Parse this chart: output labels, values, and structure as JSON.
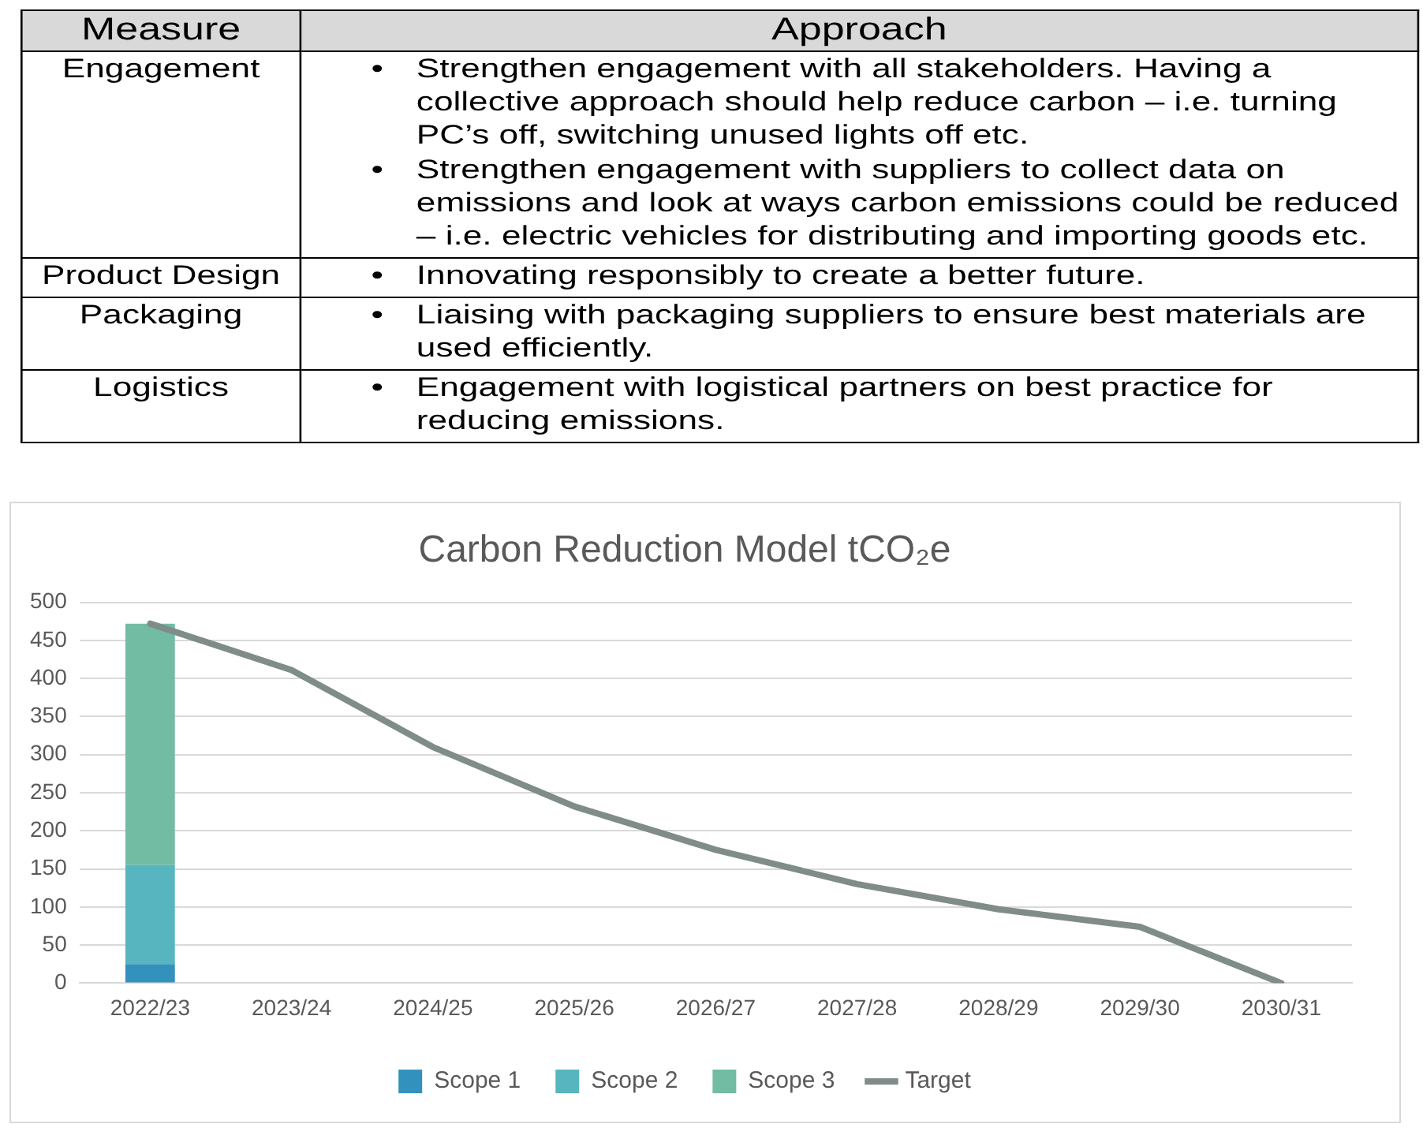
{
  "chart_data": [
    {
      "type": "other",
      "annotations": [
        "Measure",
        "Approach",
        "Engagement",
        "•\tStrengthen engagement with all stakeholders. Having a collective approach should help reduce carbon – i.e. turning PC’s off, switching unused lights off etc.\n•\tStrengthen engagement with suppliers to collect data on emissions and look at ways carbon emissions could be reduced – i.e. electric vehicles for distributing and importing goods etc.",
        "Product Design",
        "•\tInnovating responsibly to create a better future.",
        "Packaging",
        "•\tLiaising with packaging suppliers to ensure best materials are used efficiently.",
        "Logistics",
        "•\tEngagement with logistical partners on best practice for reducing emissions."
      ]
    },
    {
      "type": "bar",
      "title": "Carbon Reduction Model tCO₂e",
      "stacked": true,
      "grid": "y",
      "legend": "bottom",
      "categories": [
        "2022/23",
        "2023/24",
        "2024/25",
        "2025/26",
        "2026/27",
        "2027/28",
        "2028/29",
        "2029/30",
        "2030/31"
      ],
      "ylim": [
        0,
        500
      ],
      "yticks": [
        0,
        50,
        100,
        150,
        200,
        250,
        300,
        350,
        400,
        450,
        500
      ],
      "series": [
        {
          "name": "Scope 1",
          "color": "#3291bd",
          "values": [
            25,
            null,
            null,
            null,
            null,
            null,
            null,
            null,
            null
          ]
        },
        {
          "name": "Scope 2",
          "color": "#57b5c0",
          "values": [
            130,
            null,
            null,
            null,
            null,
            null,
            null,
            null,
            null
          ]
        },
        {
          "name": "Scope 3",
          "color": "#72bca4",
          "values": [
            317,
            null,
            null,
            null,
            null,
            null,
            null,
            null,
            null
          ]
        },
        {
          "name": "Target",
          "type": "line",
          "color": "#7f8c8a",
          "marker": "none",
          "values": [
            472,
            411,
            310,
            232,
            175,
            130,
            97,
            74,
            0
          ]
        }
      ]
    }
  ]
}
